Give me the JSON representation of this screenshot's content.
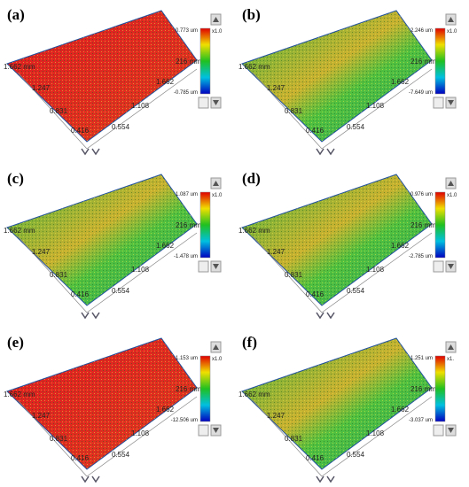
{
  "panels": [
    {
      "label": "(a)",
      "max": "0.773 um",
      "min": "-0.785 um",
      "scale": "x1.0",
      "axis": [
        "1.662 mm",
        "1.247",
        "0.831",
        "0.416",
        "0.554",
        "1.108",
        "1.662",
        "216 mm"
      ]
    },
    {
      "label": "(b)",
      "max": "2.246 um",
      "min": "-7.649 um",
      "scale": "x1.0",
      "axis": [
        "1.662 mm",
        "1.247",
        "0.831",
        "0.416",
        "0.554",
        "1.108",
        "1.662",
        "216 mm"
      ]
    },
    {
      "label": "(c)",
      "max": "1.087 um",
      "min": "-1.478 um",
      "scale": "x1.0",
      "axis": [
        "1.662 mm",
        "1.247",
        "0.831",
        "0.416",
        "0.554",
        "1.108",
        "1.662",
        "216 mm"
      ]
    },
    {
      "label": "(d)",
      "max": "0.976 um",
      "min": "-2.785 um",
      "scale": "x1.0",
      "axis": [
        "1.662 mm",
        "1.247",
        "0.831",
        "0.416",
        "0.554",
        "1.108",
        "1.662",
        "216 mm"
      ]
    },
    {
      "label": "(e)",
      "max": "1.153 um",
      "min": "-12.506 um",
      "scale": "x1.0",
      "axis": [
        "1.662 mm",
        "1.247",
        "0.831",
        "0.416",
        "0.554",
        "1.108",
        "1.662",
        "216 mm"
      ]
    },
    {
      "label": "(f)",
      "max": "1.251 um",
      "min": "-3.037 um",
      "scale": "x1.",
      "axis": [
        "1.662 mm",
        "1.247",
        "0.831",
        "0.416",
        "0.554",
        "1.108",
        "1.662",
        "216 mm"
      ]
    }
  ]
}
